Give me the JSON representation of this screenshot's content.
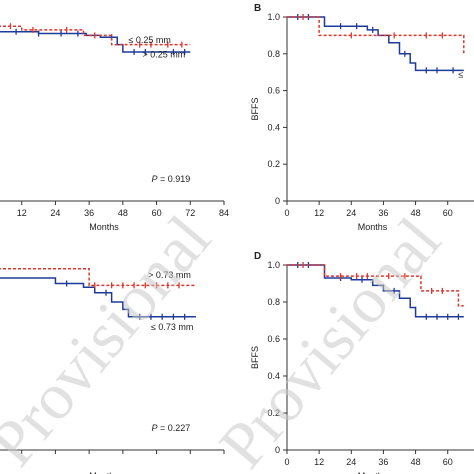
{
  "colors": {
    "blue": "#1f3b9a",
    "red": "#e0352b",
    "axis": "#333333",
    "watermark": "#c9c9c9"
  },
  "watermark": "Provisional",
  "chart_data": [
    {
      "id": "A",
      "type": "line",
      "panel_label": "",
      "xlabel": "Months",
      "ylabel": "",
      "xticks": [
        "12",
        "24",
        "36",
        "48",
        "60",
        "72",
        "84"
      ],
      "yticks": [],
      "xlim": [
        0,
        84
      ],
      "ylim": [
        0,
        1.0
      ],
      "pvalue_prefix": "P",
      "pvalue_value": " = 0.919",
      "series": [
        {
          "name": "≤ 0.25 mm",
          "color": "blue",
          "dash": false,
          "x": [
            0,
            10,
            18,
            28,
            35,
            40,
            46,
            48,
            62,
            72
          ],
          "y": [
            0.92,
            0.92,
            0.91,
            0.91,
            0.9,
            0.89,
            0.85,
            0.81,
            0.81,
            0.81
          ],
          "censor": [
            10,
            18,
            26,
            32,
            44,
            52,
            56,
            66,
            70
          ]
        },
        {
          "name": "> 0.25 mm",
          "color": "red",
          "dash": true,
          "x": [
            0,
            8,
            12,
            22,
            34,
            44,
            50,
            72
          ],
          "y": [
            0.95,
            0.95,
            0.93,
            0.93,
            0.9,
            0.85,
            0.85,
            0.85
          ],
          "censor": [
            8,
            16,
            28,
            38,
            54,
            58,
            64,
            69
          ]
        }
      ],
      "legend": [
        {
          "label": "≤ 0.25 mm",
          "anchor_x": 50,
          "y": 0.86
        },
        {
          "label": "> 0.25 mm",
          "anchor_x": 55,
          "y": 0.78
        }
      ]
    },
    {
      "id": "B",
      "type": "line",
      "panel_label": "B",
      "xlabel": "Months",
      "ylabel": "BFFS",
      "xticks": [
        "0",
        "12",
        "24",
        "36",
        "48",
        "60"
      ],
      "yticks": [
        "0",
        "0.2",
        "0.4",
        "0.6",
        "0.8",
        "1.0"
      ],
      "xlim": [
        0,
        84
      ],
      "ylim": [
        0,
        1.0
      ],
      "pvalue_prefix": "",
      "pvalue_value": "",
      "series": [
        {
          "name": "",
          "color": "blue",
          "dash": false,
          "x": [
            0,
            12,
            14,
            30,
            34,
            38,
            42,
            46,
            48,
            66
          ],
          "y": [
            1.0,
            1.0,
            0.95,
            0.93,
            0.9,
            0.86,
            0.8,
            0.75,
            0.71,
            0.71
          ],
          "censor": [
            4,
            8,
            20,
            26,
            32,
            44,
            52,
            56,
            62
          ]
        },
        {
          "name": "",
          "color": "red",
          "dash": true,
          "x": [
            0,
            10,
            12,
            36,
            48,
            66
          ],
          "y": [
            1.0,
            1.0,
            0.9,
            0.9,
            0.9,
            0.8
          ],
          "censor": [
            6,
            24,
            40,
            52,
            58
          ]
        }
      ],
      "legend": [
        {
          "label": "≤",
          "anchor_x": 64,
          "y": 0.67
        }
      ]
    },
    {
      "id": "C",
      "type": "line",
      "panel_label": "",
      "xlabel": "Months",
      "ylabel": "",
      "xticks": [],
      "yticks": [],
      "xlim": [
        0,
        84
      ],
      "ylim": [
        0,
        1.0
      ],
      "pvalue_prefix": "P",
      "pvalue_value": " = 0.227",
      "series": [
        {
          "name": "≤ 0.73 mm",
          "color": "blue",
          "dash": false,
          "x": [
            0,
            20,
            24,
            34,
            38,
            44,
            48,
            50,
            74
          ],
          "y": [
            0.93,
            0.93,
            0.9,
            0.88,
            0.85,
            0.8,
            0.76,
            0.72,
            0.72
          ],
          "censor": [
            28,
            42,
            54,
            58,
            62,
            66,
            70
          ]
        },
        {
          "name": "> 0.73 mm",
          "color": "red",
          "dash": true,
          "x": [
            0,
            32,
            36,
            74
          ],
          "y": [
            0.98,
            0.98,
            0.89,
            0.89
          ],
          "censor": [
            38,
            44,
            48,
            52,
            56,
            60,
            64,
            68
          ]
        }
      ],
      "legend": [
        {
          "label": "> 0.73 mm",
          "anchor_x": 57,
          "y": 0.93
        },
        {
          "label": "≤ 0.73 mm",
          "anchor_x": 58,
          "y": 0.65
        }
      ]
    },
    {
      "id": "D",
      "type": "line",
      "panel_label": "D",
      "xlabel": "Months",
      "ylabel": "BFFS",
      "xticks": [
        "0",
        "12",
        "24",
        "36",
        "48",
        "60"
      ],
      "yticks": [
        "0",
        "0.2",
        "0.4",
        "0.6",
        "0.8",
        "1.0"
      ],
      "xlim": [
        0,
        84
      ],
      "ylim": [
        0,
        1.0
      ],
      "pvalue_prefix": "",
      "pvalue_value": "",
      "series": [
        {
          "name": "",
          "color": "blue",
          "dash": false,
          "x": [
            0,
            12,
            14,
            24,
            32,
            36,
            42,
            46,
            48,
            66
          ],
          "y": [
            1.0,
            1.0,
            0.93,
            0.92,
            0.89,
            0.86,
            0.82,
            0.77,
            0.72,
            0.72
          ],
          "censor": [
            4,
            8,
            20,
            28,
            40,
            52,
            56,
            60,
            64
          ]
        },
        {
          "name": "",
          "color": "red",
          "dash": true,
          "x": [
            0,
            12,
            14,
            34,
            50,
            62,
            64,
            66
          ],
          "y": [
            1.0,
            1.0,
            0.94,
            0.94,
            0.86,
            0.86,
            0.78,
            0.78
          ],
          "censor": [
            6,
            20,
            26,
            30,
            38,
            44,
            54,
            58
          ]
        }
      ],
      "legend": []
    }
  ]
}
